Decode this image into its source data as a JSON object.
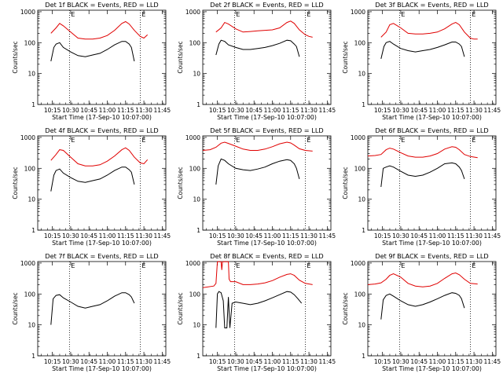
{
  "figure": {
    "xlabel": "Start Time (17-Sep-10 10:07:00)",
    "ylabel": "Counts/sec",
    "colors": {
      "events": "#000000",
      "lld": "#e00000",
      "axes": "#000000"
    },
    "marker_label": "E",
    "x_range_min": [
      3.0,
      98.0
    ],
    "y_range_log": [
      1,
      1000
    ]
  },
  "chart_data": [
    {
      "type": "line",
      "title": "Det 1f BLACK = Events, RED = LLD",
      "log_y": true,
      "xlim": [
        10.05,
        11.8
      ],
      "ylim": [
        1,
        1000
      ],
      "x_ticks": [
        "10:15",
        "10:30",
        "10:45",
        "11:00",
        "11:15",
        "11:30",
        "11:45"
      ],
      "y_ticks": [
        "1",
        "10",
        "100",
        "1000"
      ],
      "markers_x": [
        "10:29",
        "11:27"
      ],
      "series": [
        {
          "name": "Events",
          "color": "#000000",
          "t": [
            10.23,
            10.27,
            10.3,
            10.35,
            10.4,
            10.5,
            10.6,
            10.7,
            10.8,
            10.9,
            11.0,
            11.1,
            11.2,
            11.25,
            11.3,
            11.33,
            11.37
          ],
          "values": [
            25,
            70,
            90,
            100,
            70,
            50,
            38,
            35,
            40,
            45,
            60,
            85,
            110,
            110,
            90,
            70,
            25
          ]
        },
        {
          "name": "LLD",
          "color": "#e00000",
          "t": [
            10.23,
            10.3,
            10.35,
            10.4,
            10.5,
            10.6,
            10.7,
            10.8,
            10.9,
            11.0,
            11.1,
            11.2,
            11.25,
            11.3,
            11.37,
            11.45,
            11.5,
            11.55
          ],
          "values": [
            200,
            300,
            420,
            350,
            220,
            140,
            130,
            130,
            140,
            170,
            250,
            420,
            480,
            400,
            250,
            160,
            140,
            180
          ]
        }
      ]
    },
    {
      "type": "line",
      "title": "Det 2f BLACK = Events, RED = LLD",
      "log_y": true,
      "xlim": [
        10.05,
        11.8
      ],
      "ylim": [
        1,
        1000
      ],
      "x_ticks": [
        "10:15",
        "10:30",
        "10:45",
        "11:00",
        "11:15",
        "11:30",
        "11:45"
      ],
      "y_ticks": [
        "1",
        "10",
        "100",
        "1000"
      ],
      "markers_x": [
        "10:29",
        "11:27"
      ],
      "series": [
        {
          "name": "Events",
          "color": "#000000",
          "t": [
            10.23,
            10.27,
            10.3,
            10.35,
            10.4,
            10.5,
            10.6,
            10.7,
            10.8,
            10.9,
            11.0,
            11.1,
            11.2,
            11.25,
            11.3,
            11.33,
            11.37
          ],
          "values": [
            40,
            90,
            120,
            110,
            85,
            70,
            60,
            60,
            65,
            70,
            80,
            95,
            120,
            115,
            90,
            75,
            35
          ]
        },
        {
          "name": "LLD",
          "color": "#e00000",
          "t": [
            10.23,
            10.3,
            10.35,
            10.4,
            10.5,
            10.6,
            10.7,
            10.8,
            10.9,
            11.0,
            11.1,
            11.2,
            11.25,
            11.3,
            11.37,
            11.45,
            11.5,
            11.55
          ],
          "values": [
            220,
            300,
            450,
            400,
            280,
            220,
            230,
            240,
            250,
            260,
            300,
            450,
            500,
            420,
            260,
            180,
            160,
            150
          ]
        }
      ]
    },
    {
      "type": "line",
      "title": "Det 3f BLACK = Events, RED = LLD",
      "log_y": true,
      "xlim": [
        10.05,
        11.8
      ],
      "ylim": [
        1,
        1000
      ],
      "x_ticks": [
        "10:15",
        "10:30",
        "10:45",
        "11:00",
        "11:15",
        "11:30",
        "11:45"
      ],
      "y_ticks": [
        "1",
        "10",
        "100",
        "1000"
      ],
      "markers_x": [
        "10:29",
        "11:27"
      ],
      "series": [
        {
          "name": "Events",
          "color": "#000000",
          "t": [
            10.23,
            10.27,
            10.3,
            10.35,
            10.4,
            10.5,
            10.6,
            10.7,
            10.8,
            10.9,
            11.0,
            11.1,
            11.2,
            11.25,
            11.3,
            11.33,
            11.37
          ],
          "values": [
            30,
            75,
            100,
            110,
            90,
            65,
            55,
            50,
            55,
            60,
            70,
            85,
            105,
            105,
            90,
            75,
            35
          ]
        },
        {
          "name": "LLD",
          "color": "#e00000",
          "t": [
            10.23,
            10.3,
            10.35,
            10.4,
            10.5,
            10.6,
            10.7,
            10.8,
            10.9,
            11.0,
            11.1,
            11.2,
            11.25,
            11.3,
            11.37,
            11.45,
            11.5,
            11.55
          ],
          "values": [
            150,
            220,
            380,
            420,
            300,
            200,
            190,
            190,
            200,
            220,
            280,
            400,
            450,
            380,
            220,
            140,
            130,
            130
          ]
        }
      ]
    },
    {
      "type": "line",
      "title": "Det 4f BLACK = Events, RED = LLD",
      "log_y": true,
      "xlim": [
        10.05,
        11.8
      ],
      "ylim": [
        1,
        1000
      ],
      "x_ticks": [
        "10:15",
        "10:30",
        "10:45",
        "11:00",
        "11:15",
        "11:30",
        "11:45"
      ],
      "y_ticks": [
        "1",
        "10",
        "100",
        "1000"
      ],
      "markers_x": [
        "10:29",
        "11:27"
      ],
      "series": [
        {
          "name": "Events",
          "color": "#000000",
          "t": [
            10.23,
            10.27,
            10.3,
            10.35,
            10.4,
            10.5,
            10.6,
            10.7,
            10.8,
            10.9,
            11.0,
            11.1,
            11.2,
            11.25,
            11.3,
            11.33,
            11.37
          ],
          "values": [
            18,
            60,
            85,
            95,
            70,
            50,
            38,
            35,
            40,
            45,
            60,
            85,
            110,
            110,
            90,
            75,
            30
          ]
        },
        {
          "name": "LLD",
          "color": "#e00000",
          "t": [
            10.23,
            10.3,
            10.35,
            10.4,
            10.5,
            10.6,
            10.7,
            10.8,
            10.9,
            11.0,
            11.1,
            11.2,
            11.25,
            11.3,
            11.37,
            11.45,
            11.5,
            11.55
          ],
          "values": [
            180,
            280,
            400,
            380,
            230,
            140,
            120,
            120,
            130,
            170,
            250,
            400,
            460,
            380,
            230,
            150,
            140,
            190
          ]
        }
      ]
    },
    {
      "type": "line",
      "title": "Det 5f BLACK = Events, RED = LLD",
      "log_y": true,
      "xlim": [
        10.05,
        11.8
      ],
      "ylim": [
        1,
        1000
      ],
      "x_ticks": [
        "10:15",
        "10:30",
        "10:45",
        "11:00",
        "11:15",
        "11:30",
        "11:45"
      ],
      "y_ticks": [
        "1",
        "10",
        "100",
        "1000"
      ],
      "markers_x": [
        "10:29",
        "11:27"
      ],
      "series": [
        {
          "name": "Events",
          "color": "#000000",
          "t": [
            10.23,
            10.26,
            10.3,
            10.35,
            10.4,
            10.5,
            10.6,
            10.7,
            10.8,
            10.9,
            11.0,
            11.1,
            11.2,
            11.25,
            11.3,
            11.33,
            11.37
          ],
          "values": [
            30,
            120,
            200,
            180,
            140,
            100,
            90,
            85,
            95,
            110,
            140,
            170,
            190,
            180,
            140,
            100,
            45
          ]
        },
        {
          "name": "LLD",
          "color": "#e00000",
          "t": [
            10.05,
            10.15,
            10.23,
            10.3,
            10.35,
            10.4,
            10.5,
            10.6,
            10.7,
            10.8,
            10.9,
            11.0,
            11.1,
            11.2,
            11.25,
            11.3,
            11.37,
            11.45,
            11.55
          ],
          "values": [
            380,
            400,
            480,
            650,
            700,
            640,
            520,
            420,
            380,
            380,
            420,
            500,
            620,
            700,
            660,
            560,
            430,
            380,
            360
          ]
        }
      ]
    },
    {
      "type": "line",
      "title": "Det 6f BLACK = Events, RED = LLD",
      "log_y": true,
      "xlim": [
        10.05,
        11.8
      ],
      "ylim": [
        1,
        1000
      ],
      "x_ticks": [
        "10:15",
        "10:30",
        "10:45",
        "11:00",
        "11:15",
        "11:30",
        "11:45"
      ],
      "y_ticks": [
        "1",
        "10",
        "100",
        "1000"
      ],
      "markers_x": [
        "10:29",
        "11:27"
      ],
      "series": [
        {
          "name": "Events",
          "color": "#000000",
          "t": [
            10.23,
            10.26,
            10.3,
            10.35,
            10.4,
            10.5,
            10.6,
            10.7,
            10.8,
            10.9,
            11.0,
            11.1,
            11.2,
            11.25,
            11.3,
            11.33,
            11.37
          ],
          "values": [
            25,
            100,
            110,
            120,
            110,
            80,
            60,
            55,
            60,
            75,
            100,
            140,
            150,
            140,
            110,
            85,
            45
          ]
        },
        {
          "name": "LLD",
          "color": "#e00000",
          "t": [
            10.05,
            10.15,
            10.23,
            10.3,
            10.35,
            10.4,
            10.5,
            10.6,
            10.7,
            10.8,
            10.9,
            11.0,
            11.1,
            11.2,
            11.25,
            11.3,
            11.37,
            11.45,
            11.55
          ],
          "values": [
            250,
            260,
            280,
            400,
            450,
            420,
            320,
            250,
            230,
            230,
            250,
            300,
            420,
            500,
            480,
            400,
            280,
            240,
            220
          ]
        }
      ]
    },
    {
      "type": "line",
      "title": "Det 7f BLACK = Events, RED = LLD",
      "log_y": true,
      "xlim": [
        10.05,
        11.8
      ],
      "ylim": [
        1,
        1000
      ],
      "x_ticks": [
        "10:15",
        "10:30",
        "10:45",
        "11:00",
        "11:15",
        "11:30",
        "11:45"
      ],
      "y_ticks": [
        "1",
        "10",
        "100",
        "1000"
      ],
      "markers_x": [
        "10:29",
        "11:27"
      ],
      "series": [
        {
          "name": "Events",
          "color": "#000000",
          "t": [
            10.23,
            10.26,
            10.3,
            10.35,
            10.4,
            10.5,
            10.6,
            10.7,
            10.8,
            10.9,
            11.0,
            11.1,
            11.2,
            11.25,
            11.3,
            11.33,
            11.37
          ],
          "values": [
            10,
            70,
            90,
            95,
            75,
            55,
            40,
            35,
            40,
            45,
            60,
            85,
            110,
            110,
            95,
            80,
            50
          ]
        }
      ]
    },
    {
      "type": "line",
      "title": "Det 8f BLACK = Events, RED = LLD",
      "log_y": true,
      "xlim": [
        10.05,
        11.8
      ],
      "ylim": [
        1,
        1000
      ],
      "x_ticks": [
        "10:15",
        "10:30",
        "10:45",
        "11:00",
        "11:15",
        "11:30",
        "11:45"
      ],
      "y_ticks": [
        "1",
        "10",
        "100",
        "1000"
      ],
      "markers_x": [
        "10:29",
        "11:27"
      ],
      "series": [
        {
          "name": "Events",
          "color": "#000000",
          "t": [
            10.23,
            10.25,
            10.27,
            10.3,
            10.33,
            10.35,
            10.38,
            10.4,
            10.42,
            10.45,
            10.5,
            10.6,
            10.7,
            10.8,
            10.9,
            11.0,
            11.1,
            11.2,
            11.25,
            11.3,
            11.35,
            11.4
          ],
          "values": [
            8,
            100,
            120,
            110,
            60,
            8,
            8,
            80,
            8,
            50,
            55,
            50,
            45,
            50,
            60,
            75,
            95,
            120,
            115,
            95,
            70,
            50
          ]
        },
        {
          "name": "LLD",
          "color": "#e00000",
          "t": [
            10.05,
            10.2,
            10.23,
            10.25,
            10.26,
            10.3,
            10.31,
            10.32,
            10.4,
            10.41,
            10.43,
            10.5,
            10.6,
            10.7,
            10.8,
            10.9,
            11.0,
            11.1,
            11.2,
            11.25,
            11.3,
            11.37,
            11.45,
            11.55
          ],
          "values": [
            160,
            180,
            220,
            1100,
            1100,
            1100,
            600,
            1100,
            1100,
            300,
            250,
            250,
            200,
            200,
            210,
            230,
            270,
            350,
            430,
            450,
            400,
            280,
            220,
            200
          ]
        }
      ]
    },
    {
      "type": "line",
      "title": "Det 9f BLACK = Events, RED = LLD",
      "log_y": true,
      "xlim": [
        10.05,
        11.8
      ],
      "ylim": [
        1,
        1000
      ],
      "x_ticks": [
        "10:15",
        "10:30",
        "10:45",
        "11:00",
        "11:15",
        "11:30",
        "11:45"
      ],
      "y_ticks": [
        "1",
        "10",
        "100",
        "1000"
      ],
      "markers_x": [
        "10:29",
        "11:27"
      ],
      "series": [
        {
          "name": "Events",
          "color": "#000000",
          "t": [
            10.23,
            10.26,
            10.3,
            10.35,
            10.4,
            10.5,
            10.6,
            10.7,
            10.8,
            10.9,
            11.0,
            11.1,
            11.2,
            11.25,
            11.3,
            11.33,
            11.37
          ],
          "values": [
            15,
            65,
            90,
            100,
            85,
            60,
            45,
            40,
            45,
            55,
            70,
            90,
            110,
            105,
            90,
            70,
            35
          ]
        },
        {
          "name": "LLD",
          "color": "#e00000",
          "t": [
            10.05,
            10.15,
            10.23,
            10.3,
            10.35,
            10.4,
            10.5,
            10.6,
            10.7,
            10.8,
            10.9,
            11.0,
            11.1,
            11.2,
            11.25,
            11.3,
            11.37,
            11.45,
            11.55
          ],
          "values": [
            200,
            210,
            230,
            300,
            400,
            450,
            350,
            220,
            180,
            170,
            180,
            220,
            320,
            450,
            480,
            420,
            300,
            220,
            210
          ]
        }
      ]
    }
  ]
}
